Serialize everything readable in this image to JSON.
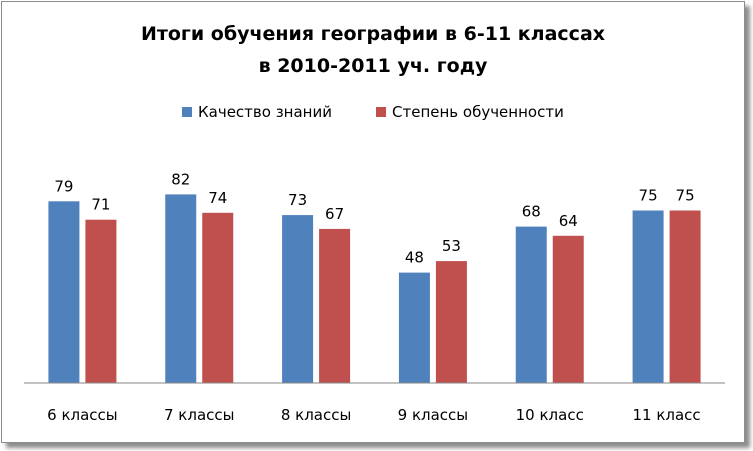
{
  "chart_data": {
    "type": "bar",
    "title": [
      "Итоги обучения географии в 6-11 классах",
      "в 2010-2011 уч. году"
    ],
    "categories": [
      "6 классы",
      "7 классы",
      "8 классы",
      "9 классы",
      "10 класс",
      "11 класс"
    ],
    "series": [
      {
        "name": "Качество знаний",
        "values": [
          79,
          82,
          73,
          48,
          68,
          75
        ],
        "color": "#4f81bd"
      },
      {
        "name": "Степень обученности",
        "values": [
          71,
          74,
          67,
          53,
          64,
          75
        ],
        "color": "#c0504d"
      }
    ],
    "ylim": [
      0,
      90
    ],
    "grid": false,
    "legend": "top",
    "xlabel": "",
    "ylabel": ""
  }
}
